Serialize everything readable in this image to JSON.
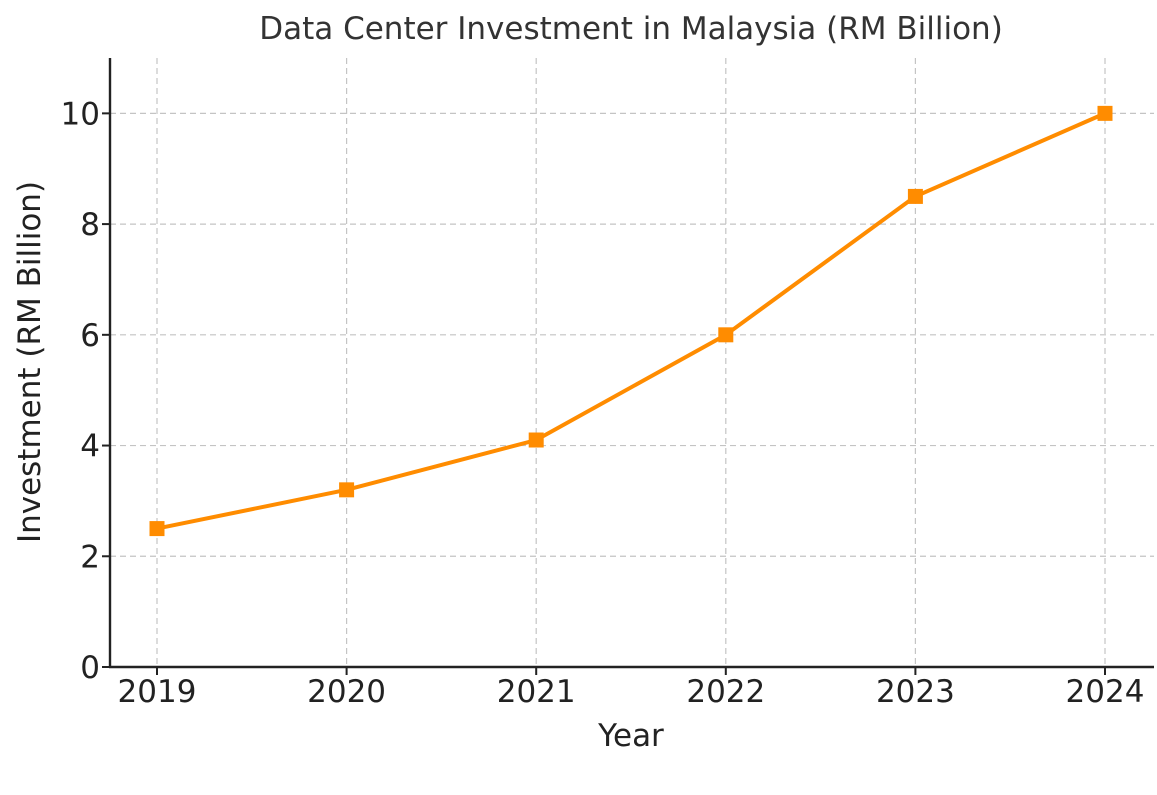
{
  "chart_data": {
    "type": "line",
    "title": "Data Center Investment in Malaysia (RM Billion)",
    "xlabel": "Year",
    "ylabel": "Investment (RM Billion)",
    "categories": [
      "2019",
      "2020",
      "2021",
      "2022",
      "2023",
      "2024"
    ],
    "series": [
      {
        "values": [
          2.5,
          3.2,
          4.1,
          6.0,
          8.5,
          10.0
        ],
        "color": "#ff8c00",
        "marker": "square"
      }
    ],
    "yticks": [
      0,
      2,
      4,
      6,
      8,
      10
    ],
    "ylim": [
      0,
      11
    ],
    "grid": true
  }
}
